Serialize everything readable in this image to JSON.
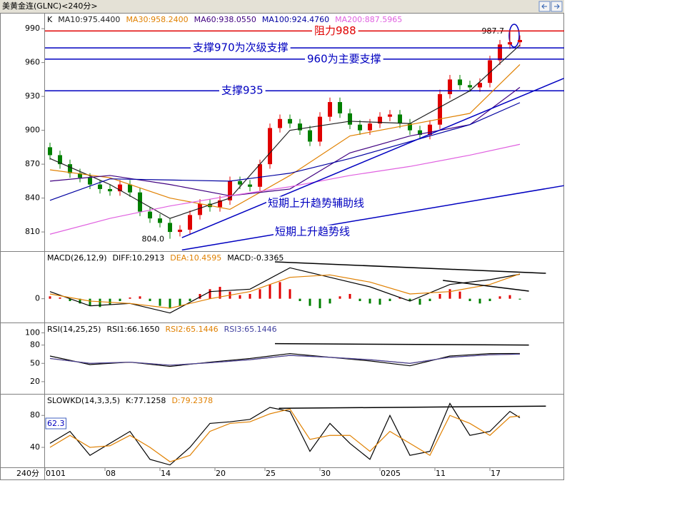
{
  "header": {
    "title": "美黄金连(GLNC)<240分>",
    "period_label": "240分"
  },
  "chart_data": [
    {
      "type": "candlestick",
      "name": "K",
      "open": [
        885,
        878,
        870,
        862,
        858,
        852,
        848,
        846,
        852,
        845,
        828,
        822,
        818,
        810,
        812,
        825,
        835,
        832,
        838,
        855,
        852,
        850,
        870,
        902,
        910,
        906,
        900,
        890,
        912,
        925,
        915,
        905,
        900,
        906,
        912,
        914,
        906,
        900,
        896,
        905,
        932,
        945,
        940,
        938,
        942,
        962,
        976,
        978
      ],
      "high": [
        889,
        882,
        874,
        866,
        862,
        856,
        852,
        856,
        856,
        849,
        832,
        826,
        822,
        816,
        829,
        839,
        839,
        842,
        859,
        859,
        856,
        874,
        906,
        914,
        914,
        910,
        904,
        916,
        929,
        929,
        919,
        909,
        910,
        916,
        918,
        918,
        910,
        904,
        909,
        936,
        949,
        949,
        944,
        946,
        966,
        980,
        987.7,
        984
      ],
      "low": [
        874,
        866,
        858,
        854,
        848,
        844,
        842,
        842,
        841,
        824,
        818,
        814,
        804,
        806,
        808,
        821,
        828,
        828,
        834,
        848,
        846,
        846,
        866,
        898,
        902,
        896,
        886,
        886,
        908,
        911,
        901,
        896,
        896,
        902,
        908,
        902,
        896,
        892,
        892,
        901,
        928,
        936,
        934,
        934,
        938,
        958,
        972,
        974
      ],
      "close": [
        878,
        870,
        862,
        858,
        852,
        848,
        846,
        852,
        845,
        828,
        822,
        818,
        810,
        812,
        825,
        835,
        832,
        838,
        855,
        852,
        850,
        870,
        902,
        910,
        906,
        900,
        890,
        912,
        925,
        915,
        905,
        900,
        906,
        912,
        914,
        906,
        900,
        896,
        905,
        932,
        945,
        940,
        938,
        942,
        962,
        976,
        978,
        980
      ],
      "up_color": "#e00000",
      "down_color": "#008000",
      "ylim": [
        793,
        1004
      ],
      "yticks": [
        810,
        840,
        870,
        900,
        930,
        960,
        990
      ],
      "xticks": [
        {
          "value": 0,
          "label": "0101"
        },
        {
          "value": 6,
          "label": "08"
        },
        {
          "value": 11.5,
          "label": "14"
        },
        {
          "value": 17,
          "label": "20"
        },
        {
          "value": 22,
          "label": "25"
        },
        {
          "value": 27.5,
          "label": "30"
        },
        {
          "value": 33.5,
          "label": "0205"
        },
        {
          "value": 39,
          "label": "11"
        },
        {
          "value": 44.5,
          "label": "17"
        }
      ],
      "series": [
        {
          "name": "MA10",
          "legend_text": "MA10:975.4400",
          "color": "#202020",
          "x": [
            0,
            6,
            12,
            18,
            24,
            30,
            36,
            42,
            47
          ],
          "values": [
            875,
            852,
            822,
            840,
            900,
            908,
            906,
            935,
            975.44
          ]
        },
        {
          "name": "MA30",
          "legend_text": "MA30:958.2400",
          "color": "#e08000",
          "x": [
            0,
            6,
            12,
            18,
            24,
            30,
            36,
            42,
            47
          ],
          "values": [
            865,
            858,
            840,
            830,
            860,
            895,
            905,
            915,
            958.24
          ]
        },
        {
          "name": "MA60",
          "legend_text": "MA60:938.0550",
          "color": "#400080",
          "x": [
            0,
            6,
            12,
            18,
            24,
            30,
            36,
            42,
            47
          ],
          "values": [
            855,
            860,
            852,
            842,
            848,
            880,
            895,
            905,
            938.055
          ]
        },
        {
          "name": "MA100",
          "legend_text": "MA100:924.4760",
          "color": "#0000a0",
          "x": [
            0,
            6,
            12,
            18,
            24,
            30,
            36,
            42,
            47
          ],
          "values": [
            838,
            857,
            856,
            855,
            862,
            875,
            890,
            905,
            924.476
          ]
        },
        {
          "name": "MA200",
          "legend_text": "MA200:887.5965",
          "color": "#e060e0",
          "x": [
            0,
            6,
            12,
            18,
            24,
            30,
            36,
            42,
            47
          ],
          "values": [
            808,
            822,
            833,
            842,
            850,
            860,
            868,
            878,
            887.5965
          ]
        }
      ],
      "levels": [
        {
          "label": "阻力988",
          "value": 988,
          "color": "#e00000"
        },
        {
          "label": "支撑970为次级支撑",
          "value": 973,
          "color": "#0000c0"
        },
        {
          "label": "960为主要支撑",
          "value": 963,
          "color": "#0000c0"
        },
        {
          "label": "支撑935",
          "value": 935,
          "color": "#0000c0"
        }
      ],
      "trend_lines": [
        {
          "label": "短期上升趋势辅助线",
          "points": [
            [
              13.2,
              805
            ],
            [
              51.4,
              946
            ]
          ],
          "color": "#0000c0"
        },
        {
          "label": "短期上升趋势线",
          "points": [
            [
              13.2,
              794
            ],
            [
              51.4,
              851
            ]
          ],
          "color": "#0000c0"
        }
      ],
      "extreme_labels": {
        "high": "987.7",
        "low": "804.0"
      }
    },
    {
      "type": "macd",
      "name": "MACD(26,12,9)",
      "ylim": [
        -10,
        20
      ],
      "yticks": [
        0
      ],
      "series": [
        {
          "name": "DIFF",
          "legend_text": "DIFF:10.2913",
          "color": "#000000",
          "x": [
            0,
            4,
            8,
            12,
            16,
            20,
            24,
            28,
            32,
            36,
            40,
            44,
            47
          ],
          "values": [
            3,
            -3,
            -2,
            -6,
            3,
            4,
            13,
            9,
            5,
            -1,
            6,
            8,
            10.2913
          ]
        },
        {
          "name": "DEA",
          "legend_text": "DEA:10.4595",
          "color": "#e08000",
          "x": [
            0,
            4,
            8,
            12,
            16,
            20,
            24,
            28,
            32,
            36,
            40,
            44,
            47
          ],
          "values": [
            2,
            -1,
            -2,
            -4,
            0,
            3,
            9,
            10,
            7,
            2,
            3,
            6,
            10.4595
          ]
        }
      ],
      "histogram": {
        "legend_text": "MACD:-0.3365",
        "up_color": "#e00000",
        "down_color": "#008000",
        "values": [
          1,
          0.5,
          -1,
          -2,
          -3,
          -3.5,
          -2.5,
          -1,
          0.5,
          1,
          -1,
          -3,
          -4,
          -3,
          -1,
          2,
          4,
          5,
          3,
          1.5,
          2,
          4,
          6,
          7,
          4,
          -1,
          -3,
          -4,
          -2,
          1,
          2,
          -1,
          -2,
          -2.5,
          -1,
          0.5,
          -1,
          -2.5,
          -1,
          2,
          4,
          3,
          -1,
          -2,
          -1,
          1,
          1.5,
          -0.3365
        ]
      },
      "trend_lines": [
        {
          "points": [
            [
              22.5,
              15.5
            ],
            [
              49.6,
              10.7
            ]
          ],
          "color": "#000000"
        },
        {
          "points": [
            [
              39.3,
              7.7
            ],
            [
              47.9,
              3.2
            ]
          ],
          "color": "#000000"
        }
      ]
    },
    {
      "type": "line",
      "name": "RSI(14,25,25)",
      "ylim": [
        0,
        117
      ],
      "yticks": [
        20,
        50,
        80,
        100
      ],
      "series": [
        {
          "name": "RSI1",
          "legend_text": "RSI1:66.1650",
          "color": "#000000",
          "x": [
            0,
            4,
            8,
            12,
            16,
            20,
            24,
            28,
            32,
            36,
            40,
            44,
            47
          ],
          "values": [
            62,
            48,
            52,
            45,
            52,
            58,
            66,
            60,
            54,
            46,
            62,
            66,
            66.165
          ]
        },
        {
          "name": "RSI2",
          "legend_text": "RSI2:65.1446",
          "color": "#e08000",
          "x": [
            0,
            4,
            8,
            12,
            16,
            20,
            24,
            28,
            32,
            36,
            40,
            44,
            47
          ],
          "values": [
            58,
            50,
            52,
            47,
            51,
            56,
            63,
            60,
            56,
            50,
            60,
            64,
            65.1446
          ]
        },
        {
          "name": "RSI3",
          "legend_text": "RSI3:65.1446",
          "color": "#4040a0",
          "x": [
            0,
            4,
            8,
            12,
            16,
            20,
            24,
            28,
            32,
            36,
            40,
            44,
            47
          ],
          "values": [
            58,
            50,
            52,
            47,
            51,
            56,
            63,
            60,
            56,
            50,
            60,
            64,
            65.1446
          ]
        }
      ],
      "trend_lines": [
        {
          "points": [
            [
              22.5,
              82.3
            ],
            [
              47.9,
              80
            ]
          ],
          "color": "#000000"
        }
      ]
    },
    {
      "type": "line",
      "name": "SLOWKD(14,3,3,5)",
      "ylim": [
        15,
        107
      ],
      "yticks": [
        40,
        80
      ],
      "readout": 62.3,
      "series": [
        {
          "name": "K",
          "legend_text": "K:77.1258",
          "color": "#000000",
          "x": [
            0,
            2,
            4,
            6,
            8,
            10,
            12,
            14,
            16,
            18,
            20,
            22,
            24,
            26,
            28,
            30,
            32,
            34,
            36,
            38,
            40,
            42,
            44,
            46,
            47
          ],
          "values": [
            45,
            60,
            30,
            45,
            60,
            25,
            18,
            40,
            70,
            72,
            75,
            90,
            85,
            35,
            70,
            45,
            25,
            80,
            30,
            35,
            95,
            55,
            60,
            85,
            77.1258
          ]
        },
        {
          "name": "D",
          "legend_text": "D:79.2378",
          "color": "#e08000",
          "x": [
            0,
            2,
            4,
            6,
            8,
            10,
            12,
            14,
            16,
            18,
            20,
            22,
            24,
            26,
            28,
            30,
            32,
            34,
            36,
            38,
            40,
            42,
            44,
            46,
            47
          ],
          "values": [
            40,
            55,
            40,
            42,
            55,
            40,
            22,
            30,
            60,
            70,
            72,
            82,
            88,
            50,
            55,
            55,
            35,
            60,
            45,
            30,
            80,
            70,
            55,
            78,
            79.2378
          ]
        }
      ],
      "trend_lines": [
        {
          "points": [
            [
              22.9,
              88.9
            ],
            [
              49.6,
              91.6
            ]
          ],
          "color": "#000000"
        }
      ]
    }
  ]
}
